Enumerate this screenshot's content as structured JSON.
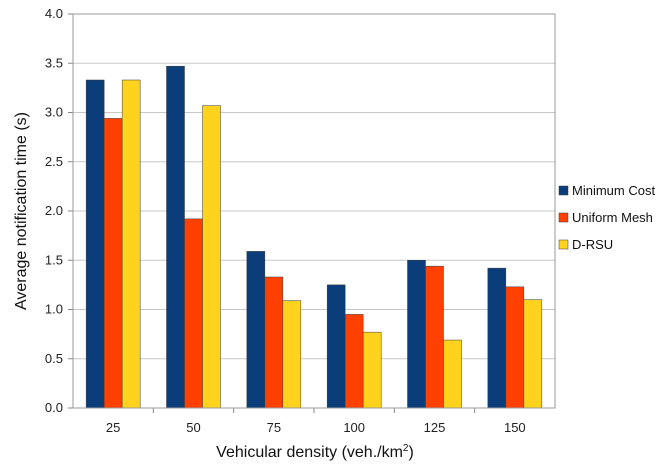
{
  "chart_data": {
    "type": "bar",
    "title": "",
    "xlabel_main": "Vehicular density (veh./km",
    "xlabel_sup": "2",
    "xlabel_tail": ")",
    "ylabel": "Average notification time (s)",
    "categories": [
      "25",
      "50",
      "75",
      "100",
      "125",
      "150"
    ],
    "ylim": [
      0,
      4.0
    ],
    "yticks": [
      "0.0",
      "0.5",
      "1.0",
      "1.5",
      "2.0",
      "2.5",
      "3.0",
      "3.5",
      "4.0"
    ],
    "grid": true,
    "legend_position": "right",
    "series": [
      {
        "name": "Minimum Cost",
        "color": "#0a3d7a",
        "values": [
          3.33,
          3.47,
          1.59,
          1.25,
          1.5,
          1.42
        ]
      },
      {
        "name": "Uniform Mesh",
        "color": "#ff4000",
        "values": [
          2.94,
          1.92,
          1.33,
          0.95,
          1.44,
          1.23
        ]
      },
      {
        "name": "D-RSU",
        "color": "#ffd21e",
        "values": [
          3.33,
          3.07,
          1.09,
          0.77,
          0.69,
          1.1
        ]
      }
    ]
  }
}
